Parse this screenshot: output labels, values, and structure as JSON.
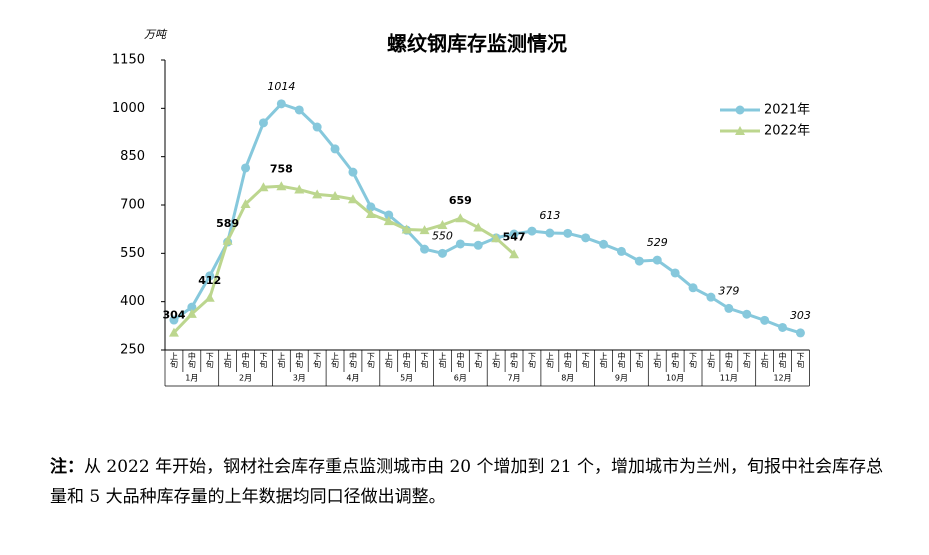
{
  "chart_data": {
    "type": "line",
    "title": "螺纹钢库存监测情况",
    "y_unit": "万吨",
    "categories": [
      "上旬",
      "中旬",
      "下旬",
      "上旬",
      "中旬",
      "下旬",
      "上旬",
      "中旬",
      "下旬",
      "上旬",
      "中旬",
      "下旬",
      "上旬",
      "中旬",
      "下旬",
      "上旬",
      "中旬",
      "下旬",
      "上旬",
      "中旬",
      "下旬",
      "上旬",
      "中旬",
      "下旬",
      "上旬",
      "中旬",
      "下旬",
      "上旬",
      "中旬",
      "下旬",
      "上旬",
      "中旬",
      "下旬",
      "上旬",
      "中旬",
      "下旬"
    ],
    "months": [
      "1月",
      "2月",
      "3月",
      "4月",
      "5月",
      "6月",
      "7月",
      "8月",
      "9月",
      "10月",
      "11月",
      "12月"
    ],
    "series": [
      {
        "name": "2021年",
        "color": "#86c8dc",
        "marker": "circle",
        "values": [
          343,
          383,
          480,
          585,
          815,
          955,
          1014,
          995,
          942,
          874,
          802,
          694,
          669,
          622,
          563,
          550,
          579,
          575,
          598,
          610,
          619,
          613,
          612,
          598,
          578,
          556,
          526,
          529,
          489,
          443,
          414,
          379,
          361,
          342,
          320,
          303
        ],
        "value_labels": [
          null,
          null,
          null,
          null,
          null,
          null,
          "1014",
          null,
          null,
          null,
          null,
          null,
          null,
          null,
          null,
          "550",
          null,
          null,
          null,
          null,
          null,
          "613",
          null,
          null,
          null,
          null,
          null,
          "529",
          null,
          null,
          null,
          "379",
          null,
          null,
          null,
          "303"
        ]
      },
      {
        "name": "2022年",
        "color": "#bcd68e",
        "marker": "triangle",
        "values": [
          304,
          362,
          412,
          589,
          703,
          755,
          758,
          748,
          733,
          728,
          718,
          672,
          650,
          624,
          622,
          638,
          659,
          630,
          597,
          547,
          null,
          null,
          null,
          null,
          null,
          null,
          null,
          null,
          null,
          null,
          null,
          null,
          null,
          null,
          null,
          null
        ],
        "value_labels": [
          "304",
          null,
          "412",
          "589",
          null,
          null,
          "758",
          null,
          null,
          null,
          null,
          null,
          null,
          null,
          null,
          null,
          "659",
          null,
          null,
          "547",
          null,
          null,
          null,
          null,
          null,
          null,
          null,
          null,
          null,
          null,
          null,
          null,
          null,
          null,
          null,
          null
        ]
      }
    ],
    "ylim": [
      250,
      1150
    ],
    "yticks": [
      250,
      400,
      550,
      700,
      850,
      1000,
      1150
    ],
    "grid": false,
    "legend": "top-right"
  },
  "note": {
    "label": "注：",
    "text": "从 2022 年开始，钢材社会库存重点监测城市由 20 个增加到 21 个，增加城市为兰州，旬报中社会库存总量和 5 大品种库存量的上年数据均同口径做出调整。"
  }
}
